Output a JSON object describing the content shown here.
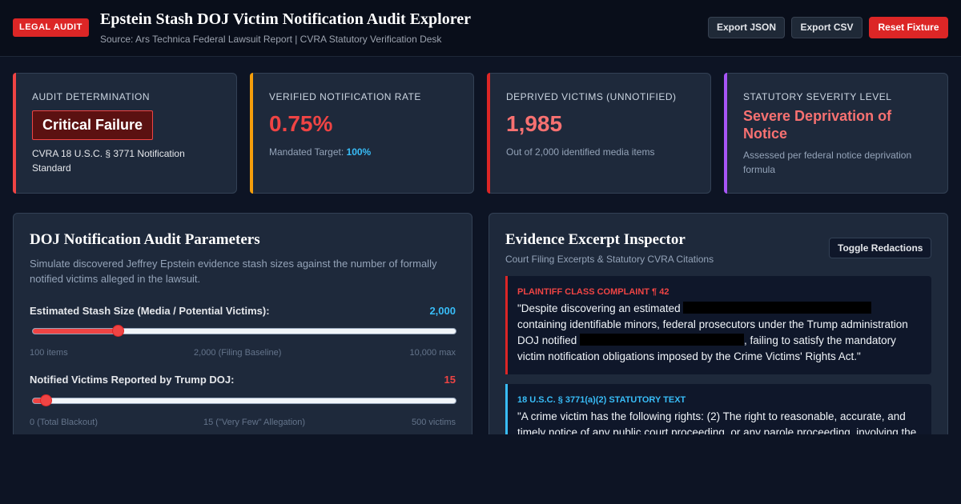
{
  "header": {
    "badge": "LEGAL AUDIT",
    "title": "Epstein Stash DOJ Victim Notification Audit Explorer",
    "subtitle": "Source: Ars Technica Federal Lawsuit Report | CVRA Statutory Verification Desk",
    "buttons": {
      "export_json": "Export JSON",
      "export_csv": "Export CSV",
      "reset": "Reset Fixture"
    }
  },
  "cards": {
    "determination": {
      "label": "AUDIT DETERMINATION",
      "value": "Critical Failure",
      "sub": "CVRA 18 U.S.C. § 3771 Notification Standard",
      "accent": "#ef4444"
    },
    "rate": {
      "label": "VERIFIED NOTIFICATION RATE",
      "value": "0.75%",
      "sub_prefix": "Mandated Target: ",
      "sub_value": "100%",
      "accent": "#f59e0b"
    },
    "deprived": {
      "label": "DEPRIVED VICTIMS (UNNOTIFIED)",
      "value": "1,985",
      "sub": "Out of 2,000 identified media items",
      "accent": "#dc2626"
    },
    "severity": {
      "label": "STATUTORY SEVERITY LEVEL",
      "value": "Severe Deprivation of Notice",
      "sub": "Assessed per federal notice deprivation formula",
      "accent": "#a855f7"
    }
  },
  "params": {
    "title": "DOJ Notification Audit Parameters",
    "desc": "Simulate discovered Jeffrey Epstein evidence stash sizes against the number of formally notified victims alleged in the lawsuit.",
    "stash": {
      "label": "Estimated Stash Size (Media / Potential Victims):",
      "value": "2,000",
      "level": 0.2,
      "min_label": "100 items",
      "mid_label": "2,000 (Filing Baseline)",
      "max_label": "10,000 max"
    },
    "notified": {
      "label": "Notified Victims Reported by Trump DOJ:",
      "value": "15",
      "level": 0.03,
      "min_label": "0 (Total Blackout)",
      "mid_label": "15 (\"Very Few\" Allegation)",
      "max_label": "500 victims"
    }
  },
  "inspector": {
    "title": "Evidence Excerpt Inspector",
    "subtitle": "Court Filing Excerpts & Statutory CVRA Citations",
    "toggle": "Toggle Redactions",
    "excerpts": [
      {
        "heading": "PLAINTIFF CLASS COMPLAINT ¶ 42",
        "color": "#ef4444",
        "text_a": "\"Despite discovering an estimated ",
        "text_b": " containing identifiable minors, federal prosecutors under the Trump administration DOJ notified ",
        "text_c": ", failing to satisfy the mandatory victim notification obligations imposed by the Crime Victims' Rights Act.\""
      },
      {
        "heading": "18 U.S.C. § 3771(a)(2) STATUTORY TEXT",
        "color": "#38bdf8",
        "text": "\"A crime victim has the following rights: (2) The right to reasonable, accurate, and timely notice of any public court proceeding, or any parole proceeding, involving the"
      }
    ]
  }
}
